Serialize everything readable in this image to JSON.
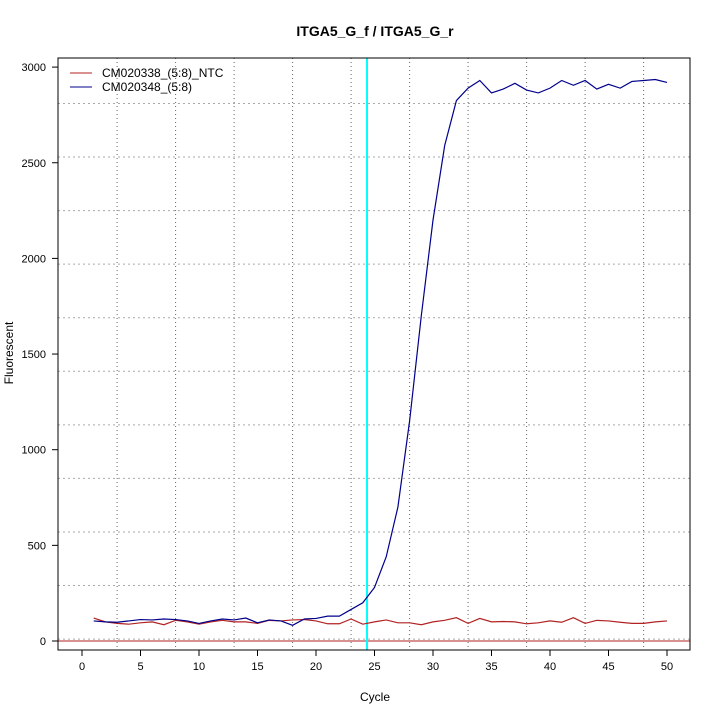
{
  "chart_data": {
    "type": "line",
    "title": "ITGA5_G_f / ITGA5_G_r",
    "xlabel": "Cycle",
    "ylabel": "Fluorescent",
    "xlim": [
      -2,
      52
    ],
    "ylim": [
      -40,
      3060
    ],
    "xticks": [
      0,
      5,
      10,
      15,
      20,
      25,
      30,
      35,
      40,
      45,
      50
    ],
    "yticks": [
      0,
      500,
      1000,
      1500,
      2000,
      2500,
      3000
    ],
    "grid": true,
    "legend_position": "top-left",
    "threshold_cycle": 24.36,
    "threshold_color": "#00ffff",
    "x": [
      1,
      2,
      3,
      4,
      5,
      6,
      7,
      8,
      9,
      10,
      11,
      12,
      13,
      14,
      15,
      16,
      17,
      18,
      19,
      20,
      21,
      22,
      23,
      24,
      25,
      26,
      27,
      28,
      29,
      30,
      31,
      32,
      33,
      34,
      35,
      36,
      37,
      38,
      39,
      40,
      41,
      42,
      43,
      44,
      45,
      46,
      47,
      48,
      49,
      50
    ],
    "series": [
      {
        "name": "CM020338_(5:8)_NTC",
        "color": "#b22222",
        "values": [
          120,
          100,
          92,
          88,
          95,
          100,
          85,
          108,
          100,
          88,
          100,
          108,
          100,
          100,
          92,
          108,
          105,
          110,
          112,
          105,
          90,
          90,
          115,
          88,
          100,
          110,
          95,
          95,
          85,
          100,
          108,
          122,
          92,
          118,
          100,
          102,
          100,
          90,
          95,
          105,
          98,
          122,
          92,
          108,
          105,
          98,
          92,
          92,
          100,
          105
        ]
      },
      {
        "name": "CM020348_(5:8)",
        "color": "#00008b",
        "values": [
          105,
          100,
          98,
          105,
          112,
          110,
          115,
          112,
          105,
          92,
          105,
          115,
          110,
          120,
          95,
          110,
          105,
          82,
          115,
          118,
          130,
          130,
          165,
          200,
          280,
          440,
          700,
          1150,
          1700,
          2200,
          2590,
          2825,
          2890,
          2930,
          2865,
          2885,
          2915,
          2880,
          2865,
          2890,
          2930,
          2905,
          2930,
          2885,
          2910,
          2890,
          2925,
          2930,
          2935,
          2920
        ]
      }
    ]
  }
}
